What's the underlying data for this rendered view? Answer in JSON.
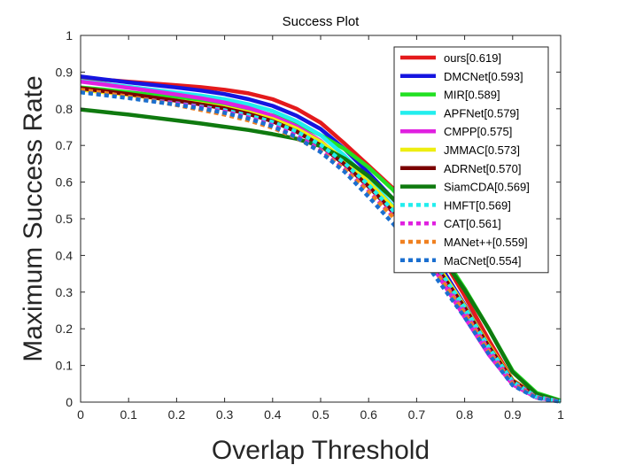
{
  "chart_data": {
    "type": "line",
    "title": "Success Plot",
    "xlabel": "Overlap Threshold",
    "ylabel": "Maximum Success Rate",
    "xlim": [
      0,
      1
    ],
    "ylim": [
      0,
      1
    ],
    "xticks": [
      "0",
      "0.1",
      "0.2",
      "0.3",
      "0.4",
      "0.5",
      "0.6",
      "0.7",
      "0.8",
      "0.9",
      "1"
    ],
    "yticks": [
      "0",
      "0.1",
      "0.2",
      "0.3",
      "0.4",
      "0.5",
      "0.6",
      "0.7",
      "0.8",
      "0.9",
      "1"
    ],
    "grid": false,
    "legend_position": "top-right",
    "x": [
      0,
      0.05,
      0.1,
      0.15,
      0.2,
      0.25,
      0.3,
      0.35,
      0.4,
      0.45,
      0.5,
      0.55,
      0.6,
      0.65,
      0.7,
      0.75,
      0.8,
      0.85,
      0.9,
      0.95,
      1
    ],
    "series": [
      {
        "name": "ours[0.619]",
        "color": "#e41a1c",
        "dash": "solid",
        "values": [
          0.885,
          0.879,
          0.874,
          0.869,
          0.864,
          0.859,
          0.852,
          0.842,
          0.826,
          0.8,
          0.762,
          0.705,
          0.645,
          0.584,
          0.52,
          0.4,
          0.29,
          0.17,
          0.06,
          0.018,
          0.003
        ]
      },
      {
        "name": "DMCNet[0.593]",
        "color": "#1515e0",
        "dash": "solid",
        "values": [
          0.888,
          0.88,
          0.872,
          0.865,
          0.858,
          0.85,
          0.84,
          0.826,
          0.808,
          0.781,
          0.745,
          0.69,
          0.625,
          0.555,
          0.478,
          0.37,
          0.265,
          0.155,
          0.058,
          0.015,
          0.002
        ]
      },
      {
        "name": "MIR[0.589]",
        "color": "#22e022",
        "dash": "solid",
        "values": [
          0.858,
          0.852,
          0.845,
          0.838,
          0.83,
          0.822,
          0.812,
          0.798,
          0.782,
          0.76,
          0.728,
          0.69,
          0.64,
          0.58,
          0.505,
          0.41,
          0.31,
          0.2,
          0.085,
          0.025,
          0.004
        ]
      },
      {
        "name": "APFNet[0.579]",
        "color": "#22eeee",
        "dash": "solid",
        "values": [
          0.876,
          0.868,
          0.86,
          0.852,
          0.844,
          0.836,
          0.826,
          0.812,
          0.794,
          0.766,
          0.728,
          0.672,
          0.608,
          0.536,
          0.458,
          0.352,
          0.248,
          0.14,
          0.052,
          0.013,
          0.002
        ]
      },
      {
        "name": "CMPP[0.575]",
        "color": "#e020e0",
        "dash": "solid",
        "values": [
          0.874,
          0.866,
          0.857,
          0.848,
          0.839,
          0.829,
          0.817,
          0.802,
          0.781,
          0.752,
          0.712,
          0.655,
          0.59,
          0.518,
          0.438,
          0.335,
          0.232,
          0.13,
          0.048,
          0.012,
          0.002
        ]
      },
      {
        "name": "JMMAC[0.573]",
        "color": "#eeee10",
        "dash": "solid",
        "values": [
          0.852,
          0.845,
          0.838,
          0.83,
          0.822,
          0.814,
          0.804,
          0.79,
          0.772,
          0.746,
          0.71,
          0.66,
          0.6,
          0.532,
          0.458,
          0.36,
          0.262,
          0.156,
          0.06,
          0.015,
          0.002
        ]
      },
      {
        "name": "ADRNet[0.570]",
        "color": "#7a0000",
        "dash": "solid",
        "values": [
          0.856,
          0.848,
          0.84,
          0.831,
          0.822,
          0.812,
          0.801,
          0.786,
          0.766,
          0.738,
          0.7,
          0.648,
          0.588,
          0.52,
          0.448,
          0.352,
          0.258,
          0.152,
          0.058,
          0.015,
          0.002
        ]
      },
      {
        "name": "SiamCDA[0.569]",
        "color": "#0f7a0f",
        "dash": "solid",
        "values": [
          0.798,
          0.791,
          0.784,
          0.776,
          0.768,
          0.76,
          0.751,
          0.742,
          0.731,
          0.718,
          0.698,
          0.664,
          0.616,
          0.556,
          0.488,
          0.4,
          0.306,
          0.2,
          0.082,
          0.022,
          0.003
        ]
      },
      {
        "name": "HMFT[0.569]",
        "color": "#22eeee",
        "dash": "dotted",
        "values": [
          0.845,
          0.838,
          0.831,
          0.823,
          0.815,
          0.806,
          0.796,
          0.782,
          0.764,
          0.738,
          0.702,
          0.652,
          0.592,
          0.524,
          0.45,
          0.354,
          0.258,
          0.15,
          0.056,
          0.014,
          0.002
        ]
      },
      {
        "name": "CAT[0.561]",
        "color": "#e020e0",
        "dash": "dotted",
        "values": [
          0.848,
          0.84,
          0.832,
          0.823,
          0.814,
          0.804,
          0.792,
          0.776,
          0.755,
          0.726,
          0.688,
          0.636,
          0.576,
          0.508,
          0.436,
          0.34,
          0.246,
          0.142,
          0.052,
          0.013,
          0.002
        ]
      },
      {
        "name": "MANet++[0.559]",
        "color": "#f08020",
        "dash": "dotted",
        "values": [
          0.852,
          0.843,
          0.833,
          0.822,
          0.81,
          0.797,
          0.784,
          0.768,
          0.748,
          0.72,
          0.684,
          0.634,
          0.574,
          0.506,
          0.432,
          0.336,
          0.242,
          0.138,
          0.05,
          0.012,
          0.002
        ]
      },
      {
        "name": "MaCNet[0.554]",
        "color": "#1a6fd0",
        "dash": "dotted",
        "values": [
          0.845,
          0.837,
          0.829,
          0.82,
          0.811,
          0.801,
          0.789,
          0.773,
          0.752,
          0.722,
          0.682,
          0.628,
          0.56,
          0.488,
          0.414,
          0.322,
          0.232,
          0.132,
          0.046,
          0.011,
          0.001
        ]
      }
    ]
  }
}
